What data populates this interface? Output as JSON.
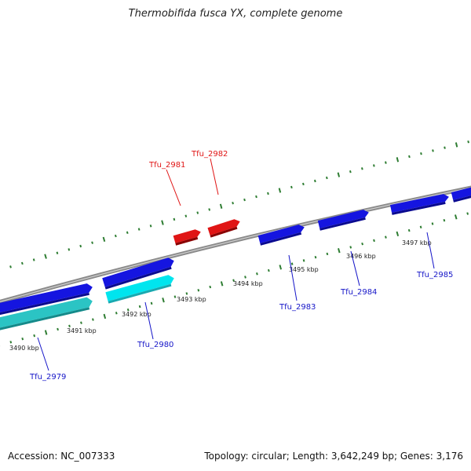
{
  "title": "Thermobifida fusca YX, complete genome",
  "footer": {
    "accession": "Accession: NC_007333",
    "summary": "Topology: circular; Length: 3,642,249 bp; Genes: 3,176"
  },
  "colors": {
    "backbone": "#8a8a8a",
    "tick": "#2e7d32",
    "forward_gene": "#e01515",
    "reverse_gene": "#1515e0",
    "highlight_gene": "#00e5ee",
    "highlight_gene_dark": "#2bc4c4",
    "forward_label": "#e01515",
    "reverse_label": "#1515c8"
  },
  "scale": {
    "unit": "kbp",
    "labels": [
      "3490 kbp",
      "3491 kbp",
      "3492 kbp",
      "3493 kbp",
      "3494 kbp",
      "3495 kbp",
      "3496 kbp",
      "3497 kbp"
    ]
  },
  "genes": [
    {
      "label": "Tfu_2979",
      "strand": "reverse"
    },
    {
      "label": "Tfu_2980",
      "strand": "reverse"
    },
    {
      "label": "Tfu_2981",
      "strand": "forward"
    },
    {
      "label": "Tfu_2982",
      "strand": "forward"
    },
    {
      "label": "Tfu_2983",
      "strand": "reverse"
    },
    {
      "label": "Tfu_2984",
      "strand": "reverse"
    },
    {
      "label": "Tfu_2985",
      "strand": "reverse"
    }
  ]
}
